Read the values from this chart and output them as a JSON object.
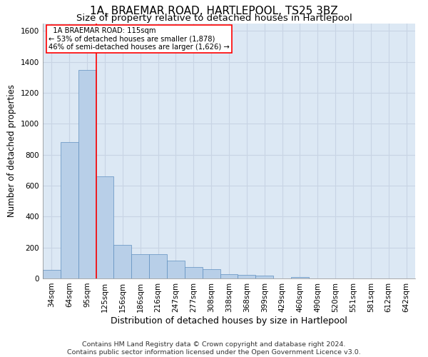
{
  "title": "1A, BRAEMAR ROAD, HARTLEPOOL, TS25 3BZ",
  "subtitle": "Size of property relative to detached houses in Hartlepool",
  "xlabel": "Distribution of detached houses by size in Hartlepool",
  "ylabel": "Number of detached properties",
  "footer_line1": "Contains HM Land Registry data © Crown copyright and database right 2024.",
  "footer_line2": "Contains public sector information licensed under the Open Government Licence v3.0.",
  "bin_labels": [
    "34sqm",
    "64sqm",
    "95sqm",
    "125sqm",
    "156sqm",
    "186sqm",
    "216sqm",
    "247sqm",
    "277sqm",
    "308sqm",
    "338sqm",
    "368sqm",
    "399sqm",
    "429sqm",
    "460sqm",
    "490sqm",
    "520sqm",
    "551sqm",
    "581sqm",
    "612sqm",
    "642sqm"
  ],
  "bar_values": [
    55,
    880,
    1350,
    660,
    215,
    155,
    155,
    115,
    75,
    60,
    30,
    25,
    20,
    0,
    10,
    0,
    0,
    0,
    0,
    0,
    0
  ],
  "bar_color": "#b8cfe8",
  "bar_edge_color": "#6090c0",
  "property_line_x": 2.5,
  "property_line_color": "red",
  "annotation_text": "  1A BRAEMAR ROAD: 115sqm\n← 53% of detached houses are smaller (1,878)\n46% of semi-detached houses are larger (1,626) →",
  "annotation_box_color": "red",
  "ylim": [
    0,
    1650
  ],
  "yticks": [
    0,
    200,
    400,
    600,
    800,
    1000,
    1200,
    1400,
    1600
  ],
  "grid_color": "#c8d4e4",
  "background_color": "#dce8f4",
  "title_fontsize": 11,
  "subtitle_fontsize": 9.5,
  "axis_label_fontsize": 9,
  "tick_fontsize": 7.5,
  "footer_fontsize": 6.8,
  "ylabel_fontsize": 8.5
}
